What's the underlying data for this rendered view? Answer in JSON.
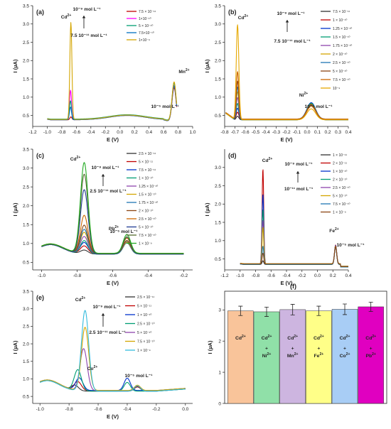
{
  "figure": {
    "panels": [
      {
        "label": "(a)",
        "ion_label": "Mn",
        "ion_sup": "2+",
        "annotation_high": "10⁻⁹ mol L⁻¹",
        "annotation_low": "7.5 10⁻¹¹ mol L⁻¹",
        "annotation_ion": "10⁻⁵ mol L⁻¹",
        "peak_label": "Cd",
        "peak_sup": "2+"
      },
      {
        "label": "(b)",
        "ion_label": "Ni",
        "ion_sup": "2+",
        "annotation_high": "10⁻⁹ mol L⁻¹",
        "annotation_low": "7.5 10⁻¹¹ mol L⁻¹",
        "annotation_ion": "10⁻⁵ mol L⁻¹",
        "peak_label": "Cd",
        "peak_sup": "2+"
      },
      {
        "label": "(c)",
        "ion_label": "Pb",
        "ion_sup": "2+",
        "annotation_high": "10⁻⁹ mol L⁻¹",
        "annotation_low": "2.5 10⁻¹¹ mol L⁻¹",
        "annotation_ion": "10⁻⁵ mol L⁻¹",
        "peak_label": "Cd",
        "peak_sup": "2+"
      },
      {
        "label": "(d)",
        "ion_label": "Fe",
        "ion_sup": "2+",
        "annotation_high": "10⁻⁹ mol L⁻¹",
        "annotation_low": "10⁻¹¹ mol L⁻¹",
        "annotation_ion": "10⁻⁵ mol L⁻¹",
        "peak_label": "Cd",
        "peak_sup": "2+"
      },
      {
        "label": "(e)",
        "ion_label": "Co",
        "ion_sup": "2+",
        "annotation_high": "10⁻⁹ mol L⁻¹",
        "annotation_low": "2.5 10⁻¹¹ mol L⁻¹",
        "annotation_ion": "10⁻⁵ mol L⁻¹",
        "peak_label": "Cd",
        "peak_sup": "2+"
      },
      {
        "label": "(f)"
      }
    ]
  },
  "chart_data": [
    {
      "type": "line",
      "panel": "(a)",
      "xlabel": "E (V)",
      "ylabel": "I (µA)",
      "xlim": [
        -1.2,
        1.0
      ],
      "ylim": [
        0.2,
        3.5
      ],
      "xticks": [
        -1.2,
        -1.0,
        -0.8,
        -0.6,
        -0.4,
        -0.2,
        0.0,
        0.2,
        0.4,
        0.6,
        0.8,
        1.0
      ],
      "xtick_labels": [
        "-1.2",
        "-1.0",
        "-0.8",
        "-0.6",
        "-0.4",
        "-0.2",
        "0.0",
        "0.2",
        "0.4",
        "0.6",
        "0.8",
        "1.0"
      ],
      "yticks": [
        0.5,
        1.0,
        1.5,
        2.0,
        2.5,
        3.0,
        3.5
      ],
      "ytick_labels": [
        "0.5",
        "1.0",
        "1.5",
        "2.0",
        "2.5",
        "3.0",
        "3.5"
      ],
      "legend_position": "top-right",
      "peak_defaults": {
        "width": 0.02,
        "ion_width": 0.04
      },
      "baseline": "a",
      "series": [
        {
          "name": "7.5 × 10⁻¹¹",
          "color": "#c00000",
          "cd_peak": 0.08,
          "cd_pos": -0.675,
          "ion_peak": 0.95,
          "ion_pos": 0.745
        },
        {
          "name": "1×10⁻¹⁰",
          "color": "#ff00ff",
          "cd_peak": 0.8,
          "cd_pos": -0.68,
          "ion_peak": 1.0,
          "ion_pos": 0.745
        },
        {
          "name": "5 × 10⁻¹⁰",
          "color": "#009e73",
          "cd_peak": 0.5,
          "cd_pos": -0.68,
          "ion_peak": 1.05,
          "ion_pos": 0.745
        },
        {
          "name": "7.5×10⁻¹⁰",
          "color": "#0070c0",
          "cd_peak": 0.35,
          "cd_pos": -0.68,
          "ion_peak": 1.0,
          "ion_pos": 0.745
        },
        {
          "name": "1×10⁻⁹",
          "color": "#d4a500",
          "cd_peak": 2.65,
          "cd_pos": -0.675,
          "ion_peak": 1.1,
          "ion_pos": 0.745
        }
      ]
    },
    {
      "type": "line",
      "panel": "(b)",
      "xlabel": "E (V)",
      "ylabel": "I (µA)",
      "xlim": [
        -0.8,
        0.4
      ],
      "ylim": [
        0.2,
        3.5
      ],
      "xticks": [
        -0.8,
        -0.7,
        -0.6,
        -0.5,
        -0.4,
        -0.3,
        -0.2,
        -0.1,
        0.0,
        0.1,
        0.2,
        0.3,
        0.4
      ],
      "xtick_labels": [
        "-0.8",
        "-0.7",
        "-0.6",
        "-0.5",
        "-0.4",
        "-0.3",
        "-0.2",
        "-0.1",
        "0.0",
        "0.1",
        "0.2",
        "0.3",
        "0.4"
      ],
      "yticks": [
        0.5,
        1.0,
        1.5,
        2.0,
        2.5,
        3.0,
        3.5
      ],
      "ytick_labels": [
        "0.5",
        "1.0",
        "1.5",
        "2.0",
        "2.5",
        "3.0",
        "3.5"
      ],
      "legend_position": "top-right",
      "peak_defaults": {
        "width": 0.018,
        "ion_width": 0.06
      },
      "baseline": "b",
      "series": [
        {
          "name": "7.5 × 10⁻¹¹",
          "color": "#333333",
          "cd_peak": 0.1,
          "cd_pos": -0.675,
          "ion_peak": 0.42,
          "ion_pos": 0.04
        },
        {
          "name": "1 × 10⁻¹⁰",
          "color": "#c00000",
          "cd_peak": 0.2,
          "cd_pos": -0.675,
          "ion_peak": 0.42,
          "ion_pos": 0.04
        },
        {
          "name": "1.25 × 10⁻¹⁰",
          "color": "#0033cc",
          "cd_peak": 0.3,
          "cd_pos": -0.675,
          "ion_peak": 0.45,
          "ion_pos": 0.04
        },
        {
          "name": "1.5 × 10⁻¹⁰",
          "color": "#009e73",
          "cd_peak": 0.45,
          "cd_pos": -0.675,
          "ion_peak": 0.45,
          "ion_pos": 0.04
        },
        {
          "name": "1.75 × 10⁻¹⁰",
          "color": "#8e44ad",
          "cd_peak": 0.6,
          "cd_pos": -0.675,
          "ion_peak": 0.4,
          "ion_pos": 0.04
        },
        {
          "name": "2 × 10⁻¹⁰",
          "color": "#d4a500",
          "cd_peak": 0.75,
          "cd_pos": -0.675,
          "ion_peak": 0.4,
          "ion_pos": 0.04
        },
        {
          "name": "2.5 × 10⁻¹⁰",
          "color": "#1f77b4",
          "cd_peak": 0.9,
          "cd_pos": -0.675,
          "ion_peak": 0.4,
          "ion_pos": 0.04
        },
        {
          "name": "5 × 10⁻¹⁰",
          "color": "#8b4513",
          "cd_peak": 1.05,
          "cd_pos": -0.675,
          "ion_peak": 0.4,
          "ion_pos": 0.04
        },
        {
          "name": "7.5 × 10⁻¹⁰",
          "color": "#cc6600",
          "cd_peak": 1.3,
          "cd_pos": -0.675,
          "ion_peak": 0.35,
          "ion_pos": 0.04
        },
        {
          "name": "10⁻⁹",
          "color": "#e6a800",
          "cd_peak": 2.6,
          "cd_pos": -0.675,
          "ion_peak": 0.3,
          "ion_pos": 0.04
        }
      ]
    },
    {
      "type": "line",
      "panel": "(c)",
      "xlabel": "E (V)",
      "ylabel": "I (µA)",
      "xlim": [
        -1.05,
        -0.15
      ],
      "ylim": [
        0.3,
        3.5
      ],
      "xticks": [
        -1.0,
        -0.8,
        -0.6,
        -0.4,
        -0.2
      ],
      "xtick_labels": [
        "-1.0",
        "-0.8",
        "-0.6",
        "-0.4",
        "-0.2"
      ],
      "yticks": [
        0.5,
        1.0,
        1.5,
        2.0,
        2.5,
        3.0,
        3.5
      ],
      "ytick_labels": [
        "0.5",
        "1.0",
        "1.5",
        "2.0",
        "2.5",
        "3.0",
        "3.5"
      ],
      "legend_position": "top-right",
      "peak_defaults": {
        "width": 0.03,
        "ion_width": 0.03
      },
      "baseline": "c",
      "series": [
        {
          "name": "2.5 × 10⁻¹¹",
          "color": "#333333",
          "cd_peak": 0.1,
          "cd_pos": -0.76,
          "ion_peak": 0.3,
          "ion_pos": -0.52
        },
        {
          "name": "5 × 10⁻¹¹",
          "color": "#c00000",
          "cd_peak": 0.2,
          "cd_pos": -0.76,
          "ion_peak": 0.3,
          "ion_pos": -0.52
        },
        {
          "name": "7.5 × 10⁻¹¹",
          "color": "#0033cc",
          "cd_peak": 0.28,
          "cd_pos": -0.76,
          "ion_peak": 0.3,
          "ion_pos": -0.52
        },
        {
          "name": "1 × 10⁻¹⁰",
          "color": "#009e73",
          "cd_peak": 0.35,
          "cd_pos": -0.76,
          "ion_peak": 0.3,
          "ion_pos": -0.52
        },
        {
          "name": "1.25 × 10⁻¹⁰",
          "color": "#8e44ad",
          "cd_peak": 0.45,
          "cd_pos": -0.76,
          "ion_peak": 0.3,
          "ion_pos": -0.52
        },
        {
          "name": "1.5 × 10⁻¹⁰",
          "color": "#d4a500",
          "cd_peak": 0.55,
          "cd_pos": -0.76,
          "ion_peak": 0.3,
          "ion_pos": -0.52
        },
        {
          "name": "1.75 × 10⁻¹⁰",
          "color": "#1f77b4",
          "cd_peak": 0.65,
          "cd_pos": -0.76,
          "ion_peak": 0.35,
          "ion_pos": -0.52
        },
        {
          "name": "2 × 10⁻¹⁰",
          "color": "#8b4513",
          "cd_peak": 0.75,
          "cd_pos": -0.76,
          "ion_peak": 0.35,
          "ion_pos": -0.52
        },
        {
          "name": "2.5 × 10⁻¹⁰",
          "color": "#cc6600",
          "cd_peak": 1.0,
          "cd_pos": -0.76,
          "ion_peak": 0.4,
          "ion_pos": -0.52
        },
        {
          "name": "5 × 10⁻¹⁰",
          "color": "#1f3a93",
          "cd_peak": 1.7,
          "cd_pos": -0.76,
          "ion_peak": 0.45,
          "ion_pos": -0.52
        },
        {
          "name": "7.5 × 10⁻¹⁰",
          "color": "#556b2f",
          "cd_peak": 2.1,
          "cd_pos": -0.76,
          "ion_peak": 0.45,
          "ion_pos": -0.52
        },
        {
          "name": "1 × 10⁻⁹",
          "color": "#22aa22",
          "cd_peak": 2.4,
          "cd_pos": -0.76,
          "ion_peak": 0.5,
          "ion_pos": -0.52
        }
      ]
    },
    {
      "type": "line",
      "panel": "(d)",
      "xlabel": "E (V)",
      "ylabel": "I (µA)",
      "xlim": [
        -1.2,
        0.4
      ],
      "ylim": [
        0.2,
        3.5
      ],
      "xticks": [
        -1.2,
        -1.0,
        -0.8,
        -0.6,
        -0.4,
        -0.2,
        0.0,
        0.2,
        0.4
      ],
      "xtick_labels": [
        "-1.2",
        "-1.0",
        "-0.8",
        "-0.6",
        "-0.4",
        "-0.2",
        "0.0",
        "0.2",
        "0.4"
      ],
      "yticks": [
        0.5,
        1.0,
        1.5,
        2.0,
        2.5,
        3.0
      ],
      "ytick_labels": [
        "0.5",
        "1.0",
        "1.5",
        "2.0",
        "2.5",
        "3.0"
      ],
      "legend_position": "top-right",
      "peak_defaults": {
        "width": 0.015,
        "ion_width": 0.02
      },
      "baseline": "d",
      "series": [
        {
          "name": "1 × 10⁻¹¹",
          "color": "#333333",
          "cd_peak": 0.1,
          "cd_pos": -0.705,
          "ion_peak": 0.5,
          "ion_pos": 0.235
        },
        {
          "name": "2 × 10⁻¹¹",
          "color": "#c00000",
          "cd_peak": 2.6,
          "cd_pos": -0.705,
          "ion_peak": 0.52,
          "ion_pos": 0.235
        },
        {
          "name": "1 × 10⁻¹⁰",
          "color": "#0033cc",
          "cd_peak": 1.9,
          "cd_pos": -0.705,
          "ion_peak": 0.5,
          "ion_pos": 0.235
        },
        {
          "name": "2 × 10⁻¹⁰",
          "color": "#009e73",
          "cd_peak": 1.5,
          "cd_pos": -0.705,
          "ion_peak": 0.5,
          "ion_pos": 0.235
        },
        {
          "name": "2.5 × 10⁻¹⁰",
          "color": "#8e44ad",
          "cd_peak": 1.2,
          "cd_pos": -0.705,
          "ion_peak": 0.5,
          "ion_pos": 0.235
        },
        {
          "name": "5 × 10⁻¹⁰",
          "color": "#d4a500",
          "cd_peak": 1.0,
          "cd_pos": -0.705,
          "ion_peak": 0.48,
          "ion_pos": 0.235
        },
        {
          "name": "7.5 × 10⁻¹⁰",
          "color": "#1f77b4",
          "cd_peak": 0.5,
          "cd_pos": -0.705,
          "ion_peak": 0.48,
          "ion_pos": 0.235
        },
        {
          "name": "1 × 10⁻⁹",
          "color": "#8b4513",
          "cd_peak": 0.3,
          "cd_pos": -0.705,
          "ion_peak": 0.48,
          "ion_pos": 0.235
        }
      ]
    },
    {
      "type": "line",
      "panel": "(e)",
      "xlabel": "E (V)",
      "ylabel": "I (µA)",
      "xlim": [
        -1.05,
        0.05
      ],
      "ylim": [
        0.3,
        3.5
      ],
      "xticks": [
        -1.0,
        -0.8,
        -0.6,
        -0.4,
        -0.2,
        0.0
      ],
      "xtick_labels": [
        "-1.0",
        "-0.8",
        "-0.6",
        "-0.4",
        "-0.2",
        "0.0"
      ],
      "yticks": [
        0.5,
        1.0,
        1.5,
        2.0,
        2.5,
        3.0,
        3.5
      ],
      "ytick_labels": [
        "0.5",
        "1.0",
        "1.5",
        "2.0",
        "2.5",
        "3.0",
        "3.5"
      ],
      "legend_position": "top-right",
      "peak_defaults": {
        "width": 0.035,
        "ion_width": 0.03
      },
      "baseline": "e",
      "series": [
        {
          "name": "2.5 × 10⁻¹¹",
          "color": "#333333",
          "cd_peak": 0.15,
          "cd_pos": -0.76,
          "ion_peak": 0.12,
          "ion_pos": -0.33
        },
        {
          "name": "5 × 10⁻¹¹",
          "color": "#c00000",
          "cd_peak": 0.25,
          "cd_pos": -0.74,
          "ion_peak": 0.12,
          "ion_pos": -0.33
        },
        {
          "name": "1 × 10⁻¹⁰",
          "color": "#0033cc",
          "cd_peak": 0.35,
          "cd_pos": -0.73,
          "ion_peak": 0.35,
          "ion_pos": -0.4
        },
        {
          "name": "2.5 × 10⁻¹⁰",
          "color": "#009e73",
          "cd_peak": 0.6,
          "cd_pos": -0.74,
          "ion_peak": 0.25,
          "ion_pos": -0.4
        },
        {
          "name": "5 × 10⁻¹⁰",
          "color": "#8e44ad",
          "cd_peak": 1.2,
          "cd_pos": -0.7,
          "ion_peak": 0.15,
          "ion_pos": -0.33
        },
        {
          "name": "7.5 × 10⁻¹⁰",
          "color": "#d4a500",
          "cd_peak": 1.8,
          "cd_pos": -0.69,
          "ion_peak": 0.15,
          "ion_pos": -0.33
        },
        {
          "name": "1 × 10⁻⁹",
          "color": "#33bbdd",
          "cd_peak": 2.3,
          "cd_pos": -0.69,
          "ion_peak": 0.15,
          "ion_pos": -0.33
        }
      ]
    },
    {
      "type": "bar",
      "panel": "(f)",
      "xlabel": "",
      "ylabel": "I (µA)",
      "ylim": [
        0,
        3.6
      ],
      "yticks": [
        0,
        1,
        2,
        3
      ],
      "ytick_labels": [
        "0",
        "1",
        "2",
        "3"
      ],
      "categories": [
        {
          "main": "Cd",
          "sup": "2+",
          "plus": "",
          "second": "",
          "second_sup": ""
        },
        {
          "main": "Cd",
          "sup": "2+",
          "plus": "+",
          "second": "Ni",
          "second_sup": "2+"
        },
        {
          "main": "Cd",
          "sup": "2+",
          "plus": "+",
          "second": "Mn",
          "second_sup": "2+"
        },
        {
          "main": "Cd",
          "sup": "2+",
          "plus": "+",
          "second": "Fe",
          "second_sup": "2+"
        },
        {
          "main": "Cd",
          "sup": "2+",
          "plus": "+",
          "second": "Co",
          "second_sup": "2+"
        },
        {
          "main": "Cd",
          "sup": "2+",
          "plus": "+",
          "second": "Pb",
          "second_sup": "2+"
        }
      ],
      "values": [
        2.97,
        2.94,
        3.01,
        2.97,
        3.02,
        3.1
      ],
      "errors": [
        0.15,
        0.15,
        0.17,
        0.15,
        0.17,
        0.15
      ],
      "colors": [
        "#f9c49a",
        "#90e0a8",
        "#cdb5e0",
        "#ffff88",
        "#a8cdf5",
        "#e000c0"
      ]
    }
  ]
}
